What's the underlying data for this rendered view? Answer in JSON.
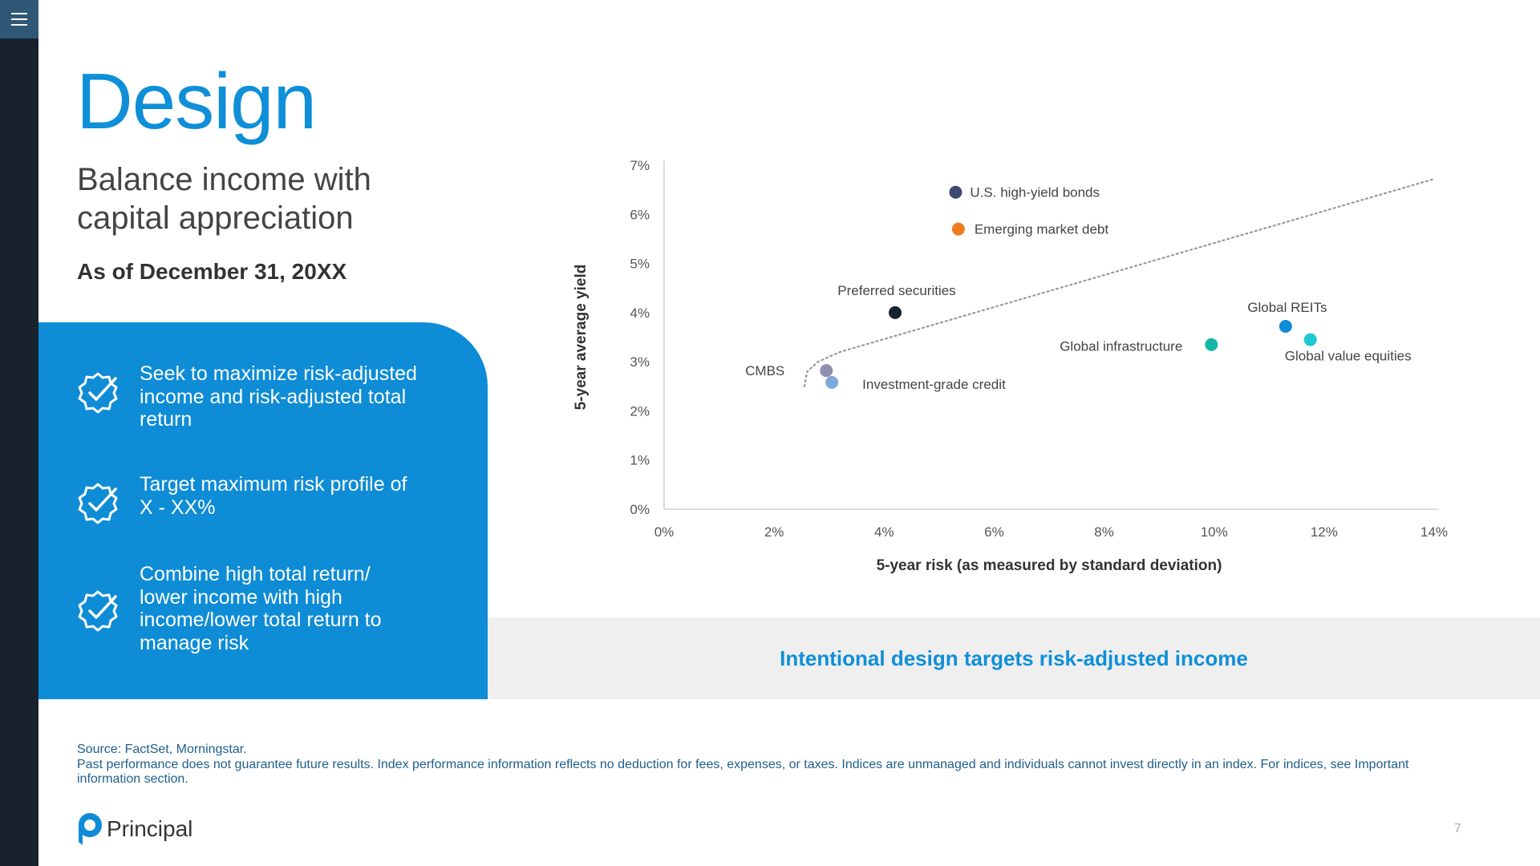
{
  "nav": {
    "menu_icon": "hamburger-menu-icon"
  },
  "header": {
    "title": "Design",
    "subtitle": "Balance income with capital appreciation",
    "as_of": "As of December 31, 20XX"
  },
  "panel": {
    "bullets": [
      {
        "icon": "badge-check-icon",
        "text": "Seek to maximize risk-adjusted income and risk-adjusted total return"
      },
      {
        "icon": "badge-check-icon",
        "text": "Target maximum risk profile of X - XX%"
      },
      {
        "icon": "badge-check-icon",
        "text": "Combine high total return/ lower income with high income/lower total return to manage risk"
      }
    ]
  },
  "band": {
    "text": "Intentional design targets risk-adjusted income"
  },
  "chart_data": {
    "type": "scatter",
    "xlabel": "5-year risk (as measured by standard deviation)",
    "ylabel": "5-year average yield",
    "xlim": [
      0,
      14
    ],
    "ylim": [
      0,
      7
    ],
    "x_ticks": [
      "0%",
      "2%",
      "4%",
      "6%",
      "8%",
      "10%",
      "12%",
      "14%"
    ],
    "y_ticks": [
      "0%",
      "1%",
      "2%",
      "3%",
      "4%",
      "5%",
      "6%",
      "7%"
    ],
    "points": [
      {
        "name": "U.S. high-yield bonds",
        "x": 5.3,
        "y": 6.45,
        "color": "#3e4a72"
      },
      {
        "name": "Emerging market debt",
        "x": 5.35,
        "y": 5.7,
        "color": "#f07c1e"
      },
      {
        "name": "Preferred securities",
        "x": 4.2,
        "y": 4.0,
        "color": "#17222e"
      },
      {
        "name": "CMBS",
        "x": 2.95,
        "y": 2.82,
        "color": "#8f8fb0"
      },
      {
        "name": "Investment-grade credit",
        "x": 3.05,
        "y": 2.58,
        "color": "#7fa8db"
      },
      {
        "name": "Global infrastructure",
        "x": 9.95,
        "y": 3.35,
        "color": "#13b8a4"
      },
      {
        "name": "Global REITs",
        "x": 11.3,
        "y": 3.72,
        "color": "#0e8cd6"
      },
      {
        "name": "Global value equities",
        "x": 11.75,
        "y": 3.45,
        "color": "#1ec8d2"
      }
    ],
    "trendline": {
      "style": "dotted",
      "x": [
        2.55,
        2.6,
        2.8,
        3.2,
        14.0
      ],
      "y": [
        2.5,
        2.8,
        3.0,
        3.2,
        6.72
      ],
      "color": "#999999"
    },
    "grid": false
  },
  "footer": {
    "source": "Source: FactSet, Morningstar.",
    "disclaimer": "Past performance does not guarantee future results. Index performance information reflects no deduction for fees, expenses, or taxes. Indices are unmanaged and individuals cannot invest directly in an index. For indices, see Important information section.",
    "logo_text": "Principal",
    "page_number": "7"
  },
  "colors": {
    "brand_blue": "#0e8cd6",
    "rail": "#17222e",
    "band_bg": "#efefef"
  }
}
